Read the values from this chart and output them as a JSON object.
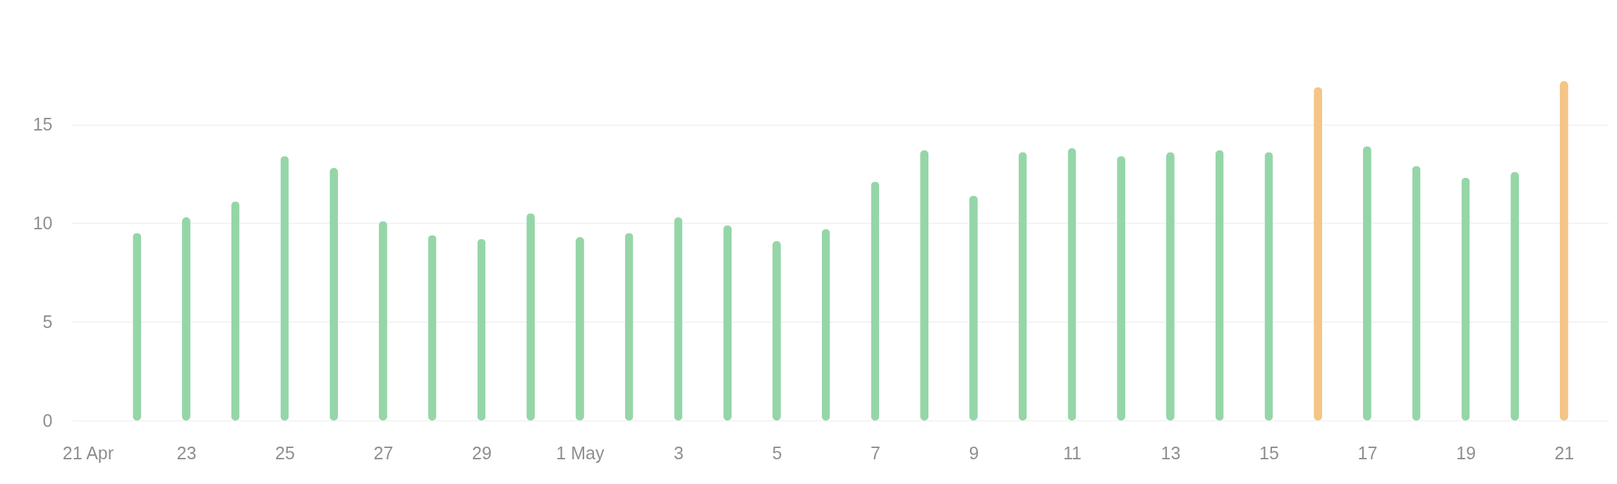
{
  "chart_data": {
    "type": "bar",
    "x": [
      "--04-22",
      "--04-23",
      "--04-24",
      "--04-25",
      "--04-26",
      "--04-27",
      "--04-28",
      "--04-29",
      "--04-30",
      "--05-01",
      "--05-02",
      "--05-03",
      "--05-04",
      "--05-05",
      "--05-06",
      "--05-07",
      "--05-08",
      "--05-09",
      "--05-10",
      "--05-11",
      "--05-12",
      "--05-13",
      "--05-14",
      "--05-15",
      "--05-16",
      "--05-17",
      "--05-18",
      "--05-19",
      "--05-20",
      "--05-21"
    ],
    "values": [
      9.5,
      10.3,
      11.1,
      13.4,
      12.8,
      10.1,
      9.4,
      9.2,
      10.5,
      9.3,
      9.5,
      10.3,
      9.9,
      9.1,
      9.7,
      12.1,
      13.7,
      11.4,
      13.6,
      13.8,
      13.4,
      13.6,
      13.7,
      13.6,
      16.9,
      13.9,
      12.9,
      12.3,
      12.6,
      17.2
    ],
    "colors": [
      "#95d6a8",
      "#95d6a8",
      "#95d6a8",
      "#95d6a8",
      "#95d6a8",
      "#95d6a8",
      "#95d6a8",
      "#95d6a8",
      "#95d6a8",
      "#95d6a8",
      "#95d6a8",
      "#95d6a8",
      "#95d6a8",
      "#95d6a8",
      "#95d6a8",
      "#95d6a8",
      "#95d6a8",
      "#95d6a8",
      "#95d6a8",
      "#95d6a8",
      "#95d6a8",
      "#95d6a8",
      "#95d6a8",
      "#95d6a8",
      "#f5c487",
      "#95d6a8",
      "#95d6a8",
      "#95d6a8",
      "#95d6a8",
      "#f5c487"
    ],
    "xlim": [
      "--04-20T18:00",
      "--05-21T20:00"
    ],
    "xticks": [
      {
        "value": "--04-21",
        "label": "21 Apr"
      },
      {
        "value": "--04-23",
        "label": "23"
      },
      {
        "value": "--04-25",
        "label": "25"
      },
      {
        "value": "--04-27",
        "label": "27"
      },
      {
        "value": "--04-29",
        "label": "29"
      },
      {
        "value": "--05-01",
        "label": "1 May"
      },
      {
        "value": "--05-03",
        "label": "3"
      },
      {
        "value": "--05-05",
        "label": "5"
      },
      {
        "value": "--05-07",
        "label": "7"
      },
      {
        "value": "--05-09",
        "label": "9"
      },
      {
        "value": "--05-11",
        "label": "11"
      },
      {
        "value": "--05-13",
        "label": "13"
      },
      {
        "value": "--05-15",
        "label": "15"
      },
      {
        "value": "--05-17",
        "label": "17"
      },
      {
        "value": "--05-19",
        "label": "19"
      },
      {
        "value": "--05-21",
        "label": "21"
      }
    ],
    "ylim": [
      0,
      17.2
    ],
    "yticks": [
      0,
      5,
      10,
      15
    ],
    "grid": "y"
  }
}
